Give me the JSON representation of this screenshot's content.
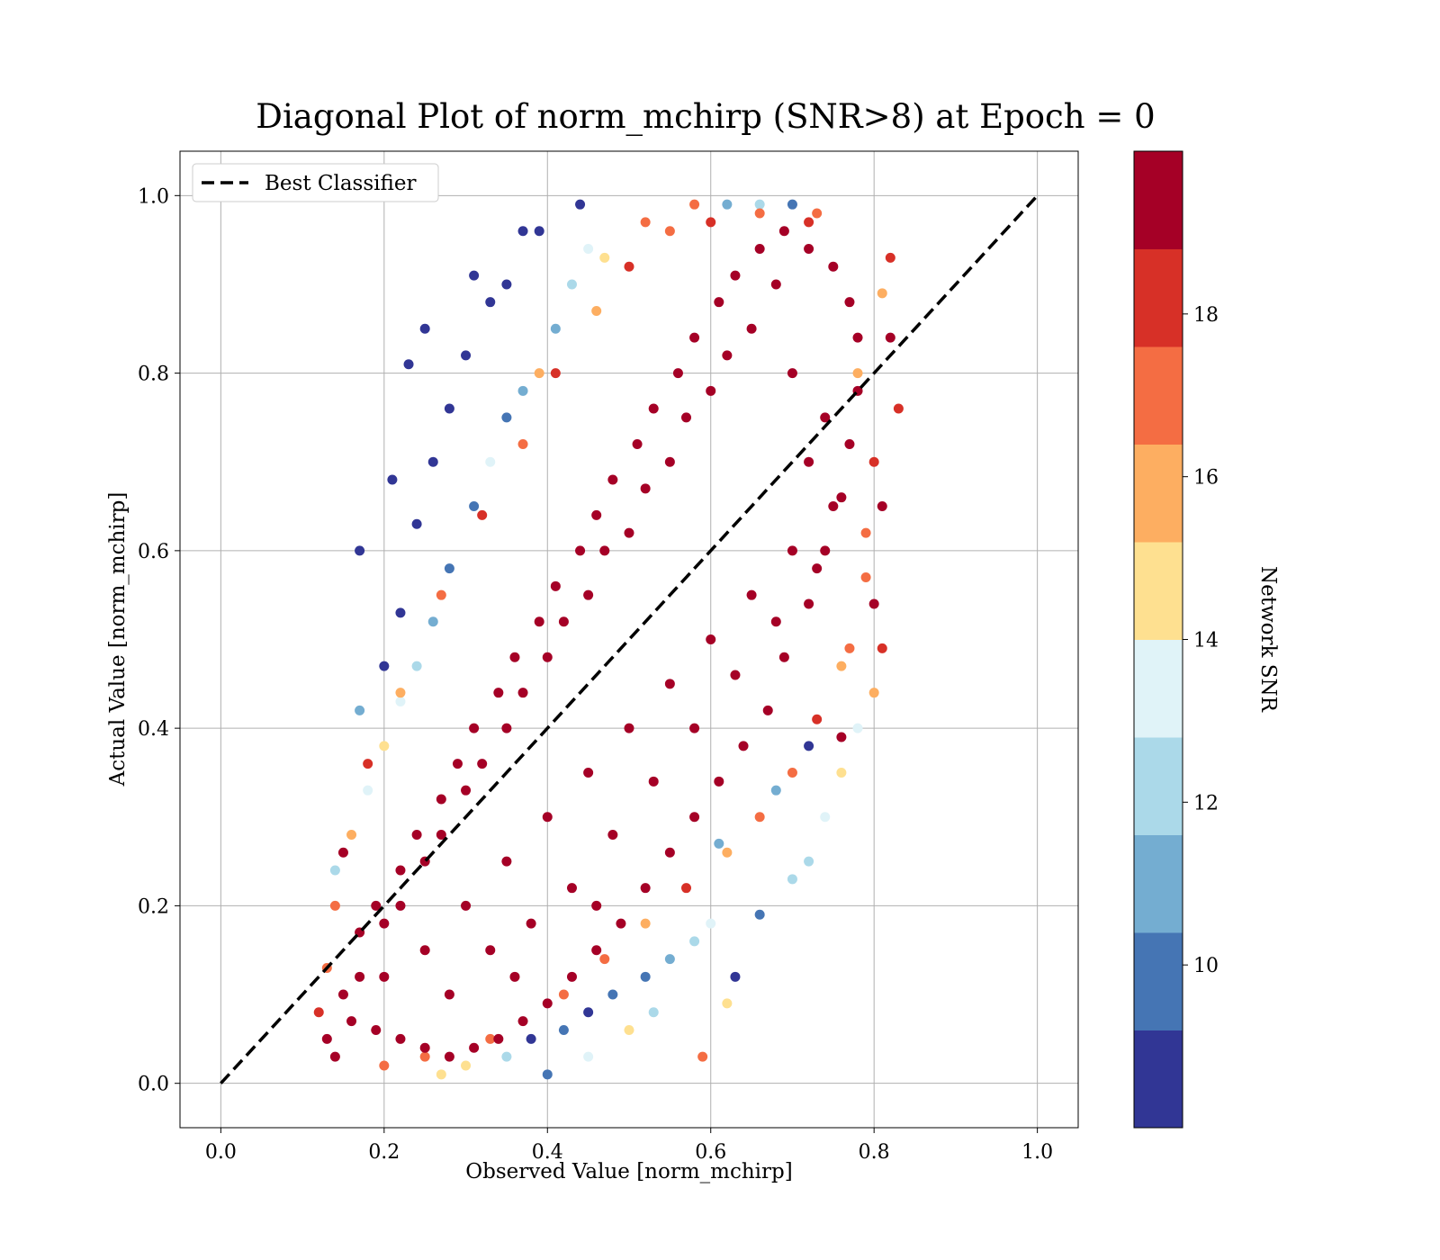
{
  "chart_data": {
    "type": "scatter",
    "title": "Diagonal Plot of norm_mchirp (SNR>8) at Epoch = 0",
    "xlabel": "Observed Value [norm_mchirp]",
    "ylabel": "Actual Value [norm_mchirp]",
    "xlim": [
      -0.05,
      1.05
    ],
    "ylim": [
      -0.05,
      1.05
    ],
    "xticks": [
      0.0,
      0.2,
      0.4,
      0.6,
      0.8,
      1.0
    ],
    "yticks": [
      0.0,
      0.2,
      0.4,
      0.6,
      0.8,
      1.0
    ],
    "xtick_labels": [
      "0.0",
      "0.2",
      "0.4",
      "0.6",
      "0.8",
      "1.0"
    ],
    "ytick_labels": [
      "0.0",
      "0.2",
      "0.4",
      "0.6",
      "0.8",
      "1.0"
    ],
    "grid": true,
    "legend": {
      "position": "top-left",
      "entries": [
        "Best Classifier"
      ]
    },
    "reference_line": {
      "name": "Best Classifier",
      "style": "dashed",
      "color": "#000000",
      "x": [
        0.0,
        1.0
      ],
      "y": [
        0.0,
        1.0
      ]
    },
    "colorbar": {
      "label": "Network SNR",
      "range": [
        8,
        20
      ],
      "ticks": [
        10,
        12,
        14,
        16,
        18
      ],
      "tick_labels": [
        "10",
        "12",
        "14",
        "16",
        "18"
      ],
      "colors": [
        "#313695",
        "#4575b4",
        "#74add1",
        "#abd9e9",
        "#e0f3f8",
        "#fee090",
        "#fdae61",
        "#f46d43",
        "#d73027",
        "#a50026"
      ]
    },
    "series": [
      {
        "color_by": "Network SNR",
        "points": [
          [
            0.17,
            0.6,
            8.5
          ],
          [
            0.21,
            0.68,
            8.3
          ],
          [
            0.23,
            0.81,
            8.2
          ],
          [
            0.25,
            0.85,
            8.6
          ],
          [
            0.31,
            0.91,
            8.4
          ],
          [
            0.35,
            0.9,
            8.2
          ],
          [
            0.37,
            0.96,
            8.7
          ],
          [
            0.39,
            0.96,
            8.3
          ],
          [
            0.44,
            0.99,
            8.5
          ],
          [
            0.33,
            0.88,
            9.0
          ],
          [
            0.28,
            0.76,
            8.4
          ],
          [
            0.3,
            0.82,
            8.8
          ],
          [
            0.24,
            0.63,
            8.6
          ],
          [
            0.26,
            0.7,
            8.3
          ],
          [
            0.2,
            0.47,
            8.8
          ],
          [
            0.22,
            0.53,
            9.2
          ],
          [
            0.35,
            0.75,
            9.5
          ],
          [
            0.37,
            0.78,
            10.5
          ],
          [
            0.31,
            0.65,
            9.8
          ],
          [
            0.41,
            0.85,
            11.0
          ],
          [
            0.43,
            0.9,
            12.5
          ],
          [
            0.45,
            0.94,
            13.5
          ],
          [
            0.28,
            0.58,
            10.2
          ],
          [
            0.26,
            0.52,
            11.5
          ],
          [
            0.24,
            0.47,
            12.2
          ],
          [
            0.22,
            0.43,
            13.2
          ],
          [
            0.2,
            0.38,
            14.5
          ],
          [
            0.18,
            0.33,
            12.8
          ],
          [
            0.16,
            0.28,
            15.5
          ],
          [
            0.14,
            0.24,
            11.8
          ],
          [
            0.17,
            0.42,
            11.2
          ],
          [
            0.33,
            0.7,
            13.8
          ],
          [
            0.39,
            0.8,
            15.2
          ],
          [
            0.47,
            0.93,
            14.8
          ],
          [
            0.52,
            0.97,
            16.5
          ],
          [
            0.58,
            0.99,
            17.2
          ],
          [
            0.62,
            0.99,
            10.8
          ],
          [
            0.66,
            0.99,
            12.0
          ],
          [
            0.7,
            0.99,
            9.5
          ],
          [
            0.73,
            0.98,
            16.8
          ],
          [
            0.38,
            0.05,
            8.6
          ],
          [
            0.42,
            0.06,
            9.3
          ],
          [
            0.45,
            0.08,
            8.9
          ],
          [
            0.48,
            0.1,
            10.3
          ],
          [
            0.52,
            0.12,
            9.6
          ],
          [
            0.55,
            0.14,
            11.4
          ],
          [
            0.58,
            0.16,
            12.3
          ],
          [
            0.6,
            0.18,
            13.0
          ],
          [
            0.63,
            0.12,
            8.5
          ],
          [
            0.66,
            0.19,
            10.1
          ],
          [
            0.7,
            0.23,
            11.7
          ],
          [
            0.72,
            0.25,
            12.6
          ],
          [
            0.74,
            0.3,
            13.4
          ],
          [
            0.76,
            0.35,
            14.6
          ],
          [
            0.78,
            0.4,
            12.9
          ],
          [
            0.8,
            0.44,
            15.8
          ],
          [
            0.35,
            0.03,
            12.1
          ],
          [
            0.3,
            0.02,
            14.2
          ],
          [
            0.45,
            0.03,
            13.1
          ],
          [
            0.5,
            0.06,
            14.9
          ],
          [
            0.59,
            0.03,
            16.9
          ],
          [
            0.62,
            0.09,
            14.0
          ],
          [
            0.53,
            0.08,
            11.9
          ],
          [
            0.4,
            0.01,
            9.9
          ],
          [
            0.27,
            0.01,
            15.1
          ],
          [
            0.61,
            0.27,
            10.6
          ],
          [
            0.68,
            0.33,
            11.1
          ],
          [
            0.72,
            0.38,
            8.7
          ],
          [
            0.76,
            0.39,
            18.8
          ],
          [
            0.81,
            0.49,
            17.6
          ],
          [
            0.8,
            0.54,
            19.5
          ],
          [
            0.81,
            0.65,
            19.2
          ],
          [
            0.82,
            0.84,
            19.3
          ],
          [
            0.82,
            0.93,
            18.7
          ],
          [
            0.81,
            0.89,
            16.4
          ],
          [
            0.79,
            0.62,
            17.5
          ],
          [
            0.83,
            0.76,
            18.2
          ],
          [
            0.76,
            0.47,
            16.2
          ],
          [
            0.14,
            0.03,
            19.0
          ],
          [
            0.12,
            0.08,
            18.5
          ],
          [
            0.13,
            0.13,
            17.4
          ],
          [
            0.14,
            0.2,
            16.6
          ],
          [
            0.15,
            0.26,
            18.9
          ],
          [
            0.18,
            0.36,
            17.8
          ],
          [
            0.22,
            0.44,
            16.1
          ],
          [
            0.27,
            0.55,
            17.1
          ],
          [
            0.32,
            0.64,
            18.1
          ],
          [
            0.37,
            0.72,
            16.7
          ],
          [
            0.41,
            0.8,
            17.9
          ],
          [
            0.46,
            0.87,
            16.3
          ],
          [
            0.5,
            0.92,
            18.4
          ],
          [
            0.55,
            0.96,
            17.3
          ],
          [
            0.6,
            0.97,
            18.6
          ],
          [
            0.66,
            0.98,
            16.9
          ],
          [
            0.72,
            0.97,
            17.7
          ],
          [
            0.2,
            0.02,
            17.0
          ],
          [
            0.25,
            0.03,
            16.8
          ],
          [
            0.33,
            0.05,
            17.5
          ],
          [
            0.42,
            0.1,
            16.5
          ],
          [
            0.47,
            0.14,
            17.2
          ],
          [
            0.52,
            0.18,
            16.4
          ],
          [
            0.57,
            0.22,
            17.8
          ],
          [
            0.62,
            0.26,
            16.2
          ],
          [
            0.66,
            0.3,
            17.4
          ],
          [
            0.7,
            0.35,
            16.7
          ],
          [
            0.73,
            0.41,
            18.3
          ],
          [
            0.77,
            0.49,
            17.0
          ],
          [
            0.79,
            0.57,
            16.6
          ],
          [
            0.8,
            0.7,
            17.6
          ],
          [
            0.78,
            0.8,
            16.0
          ],
          [
            0.13,
            0.05,
            19.6
          ],
          [
            0.15,
            0.1,
            19.8
          ],
          [
            0.17,
            0.17,
            19.7
          ],
          [
            0.19,
            0.2,
            19.9
          ],
          [
            0.22,
            0.24,
            19.6
          ],
          [
            0.24,
            0.28,
            19.8
          ],
          [
            0.27,
            0.32,
            19.5
          ],
          [
            0.29,
            0.36,
            19.9
          ],
          [
            0.31,
            0.4,
            19.7
          ],
          [
            0.34,
            0.44,
            19.6
          ],
          [
            0.36,
            0.48,
            19.8
          ],
          [
            0.39,
            0.52,
            19.9
          ],
          [
            0.41,
            0.56,
            19.5
          ],
          [
            0.44,
            0.6,
            19.7
          ],
          [
            0.46,
            0.64,
            19.8
          ],
          [
            0.48,
            0.68,
            19.6
          ],
          [
            0.51,
            0.72,
            19.9
          ],
          [
            0.53,
            0.76,
            19.7
          ],
          [
            0.56,
            0.8,
            19.8
          ],
          [
            0.58,
            0.84,
            19.5
          ],
          [
            0.61,
            0.88,
            19.9
          ],
          [
            0.63,
            0.91,
            19.6
          ],
          [
            0.66,
            0.94,
            19.8
          ],
          [
            0.69,
            0.96,
            19.7
          ],
          [
            0.72,
            0.94,
            19.9
          ],
          [
            0.75,
            0.92,
            19.6
          ],
          [
            0.77,
            0.88,
            19.8
          ],
          [
            0.78,
            0.84,
            19.5
          ],
          [
            0.78,
            0.78,
            19.7
          ],
          [
            0.77,
            0.72,
            19.9
          ],
          [
            0.76,
            0.66,
            19.6
          ],
          [
            0.74,
            0.6,
            19.8
          ],
          [
            0.72,
            0.54,
            19.7
          ],
          [
            0.69,
            0.48,
            19.9
          ],
          [
            0.67,
            0.42,
            19.5
          ],
          [
            0.64,
            0.38,
            19.8
          ],
          [
            0.61,
            0.34,
            19.6
          ],
          [
            0.58,
            0.3,
            19.9
          ],
          [
            0.55,
            0.26,
            19.7
          ],
          [
            0.52,
            0.22,
            19.8
          ],
          [
            0.49,
            0.18,
            19.5
          ],
          [
            0.46,
            0.15,
            19.9
          ],
          [
            0.43,
            0.12,
            19.6
          ],
          [
            0.4,
            0.09,
            19.8
          ],
          [
            0.37,
            0.07,
            19.7
          ],
          [
            0.34,
            0.05,
            19.9
          ],
          [
            0.31,
            0.04,
            19.6
          ],
          [
            0.28,
            0.03,
            19.8
          ],
          [
            0.25,
            0.04,
            19.5
          ],
          [
            0.22,
            0.05,
            19.7
          ],
          [
            0.19,
            0.06,
            19.9
          ],
          [
            0.16,
            0.07,
            19.6
          ],
          [
            0.2,
            0.12,
            19.8
          ],
          [
            0.25,
            0.15,
            19.7
          ],
          [
            0.3,
            0.2,
            19.9
          ],
          [
            0.35,
            0.25,
            19.6
          ],
          [
            0.4,
            0.3,
            19.8
          ],
          [
            0.45,
            0.35,
            19.5
          ],
          [
            0.5,
            0.4,
            19.9
          ],
          [
            0.55,
            0.45,
            19.7
          ],
          [
            0.6,
            0.5,
            19.8
          ],
          [
            0.65,
            0.55,
            19.6
          ],
          [
            0.7,
            0.6,
            19.9
          ],
          [
            0.72,
            0.7,
            19.7
          ],
          [
            0.7,
            0.8,
            19.8
          ],
          [
            0.65,
            0.85,
            19.5
          ],
          [
            0.6,
            0.78,
            19.9
          ],
          [
            0.55,
            0.7,
            19.6
          ],
          [
            0.5,
            0.62,
            19.8
          ],
          [
            0.45,
            0.55,
            19.7
          ],
          [
            0.4,
            0.48,
            19.9
          ],
          [
            0.35,
            0.4,
            19.6
          ],
          [
            0.3,
            0.33,
            19.8
          ],
          [
            0.25,
            0.25,
            19.5
          ],
          [
            0.2,
            0.18,
            19.9
          ],
          [
            0.33,
            0.15,
            19.7
          ],
          [
            0.38,
            0.18,
            19.8
          ],
          [
            0.43,
            0.22,
            19.6
          ],
          [
            0.48,
            0.28,
            19.9
          ],
          [
            0.53,
            0.34,
            19.7
          ],
          [
            0.58,
            0.4,
            19.8
          ],
          [
            0.63,
            0.46,
            19.5
          ],
          [
            0.68,
            0.52,
            19.9
          ],
          [
            0.73,
            0.58,
            19.6
          ],
          [
            0.75,
            0.65,
            19.8
          ],
          [
            0.74,
            0.75,
            19.7
          ],
          [
            0.68,
            0.9,
            19.9
          ],
          [
            0.62,
            0.82,
            19.6
          ],
          [
            0.57,
            0.75,
            19.8
          ],
          [
            0.52,
            0.67,
            19.5
          ],
          [
            0.47,
            0.6,
            19.9
          ],
          [
            0.42,
            0.52,
            19.7
          ],
          [
            0.37,
            0.44,
            19.8
          ],
          [
            0.32,
            0.36,
            19.6
          ],
          [
            0.27,
            0.28,
            19.9
          ],
          [
            0.22,
            0.2,
            19.7
          ],
          [
            0.17,
            0.12,
            19.8
          ],
          [
            0.28,
            0.1,
            19.5
          ],
          [
            0.36,
            0.12,
            19.9
          ],
          [
            0.46,
            0.2,
            19.6
          ]
        ]
      }
    ]
  }
}
